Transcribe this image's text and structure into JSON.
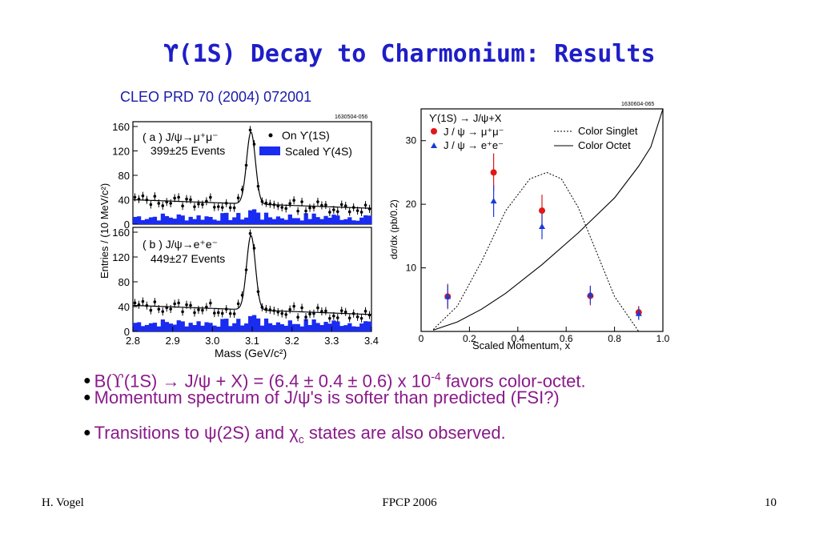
{
  "slide": {
    "title": "ϒ(1S) Decay to Charmonium: Results",
    "reference": "CLEO  PRD 70 (2004) 072001"
  },
  "chart_data": [
    {
      "type": "histogram",
      "panel_id": "1630504-056",
      "xlabel": "Mass (GeV/c²)",
      "ylabel": "Entries / (10 MeV/c²)",
      "xlim": [
        2.8,
        3.4
      ],
      "xticks": [
        "2.8",
        "2.9",
        "3.0",
        "3.1",
        "3.2",
        "3.3",
        "3.4"
      ],
      "panels": [
        {
          "label": "( a ) J/ψ→μ⁺μ⁻",
          "events": "399±25 Events",
          "ylim": [
            0,
            160
          ],
          "yticks": [
            "0",
            "40",
            "80",
            "120",
            "160"
          ],
          "legend": [
            "On ϒ(1S)",
            "Scaled ϒ(4S)"
          ],
          "peak": {
            "mass": 3.097,
            "height": 158,
            "background": 40
          },
          "scaled_bg_level": 12
        },
        {
          "label": "( b ) J/ψ→e⁺e⁻",
          "events": "449±27 Events",
          "ylim": [
            0,
            160
          ],
          "yticks": [
            "0",
            "40",
            "80",
            "120",
            "160"
          ],
          "peak": {
            "mass": 3.097,
            "height": 162,
            "background": 42
          },
          "scaled_bg_level": 14
        }
      ]
    },
    {
      "type": "scatter",
      "panel_id": "1630604-065",
      "xlabel": "Scaled Momentum, x",
      "ylabel": "dσ/dx (pb/0.2)",
      "xlim": [
        0,
        1.0
      ],
      "ylim": [
        0,
        35
      ],
      "xticks": [
        "0",
        "0.2",
        "0.4",
        "0.6",
        "0.8",
        "1.0"
      ],
      "yticks": [
        "10",
        "20",
        "30"
      ],
      "legend_title": "ϒ(1S) → J/ψ+X",
      "series": [
        {
          "name": "J / ψ → μ⁺μ⁻",
          "color": "#e01818",
          "marker": "circle",
          "x": [
            0.11,
            0.3,
            0.5,
            0.7,
            0.9
          ],
          "y": [
            5.5,
            25.0,
            19.0,
            5.6,
            3.0
          ],
          "err": [
            2.0,
            3.0,
            2.5,
            1.5,
            1.0
          ]
        },
        {
          "name": "J / ψ → e⁺e⁻",
          "color": "#1a3ad8",
          "marker": "triangle",
          "x": [
            0.11,
            0.3,
            0.5,
            0.7,
            0.9
          ],
          "y": [
            5.5,
            20.5,
            16.5,
            5.8,
            2.8
          ],
          "err": [
            1.8,
            2.5,
            2.0,
            1.4,
            1.0
          ]
        },
        {
          "name": "Color Singlet",
          "style": "dotted",
          "x": [
            0.05,
            0.15,
            0.25,
            0.35,
            0.45,
            0.52,
            0.58,
            0.65,
            0.72,
            0.8,
            0.9
          ],
          "y": [
            0.3,
            4,
            11,
            19,
            24,
            25,
            24,
            19.5,
            13,
            5.5,
            0
          ]
        },
        {
          "name": "Color Octet",
          "style": "solid",
          "x": [
            0.05,
            0.15,
            0.25,
            0.35,
            0.5,
            0.65,
            0.8,
            0.9,
            0.95,
            1.0
          ],
          "y": [
            0.2,
            1.5,
            3.5,
            6,
            10.5,
            15.5,
            21,
            26,
            29,
            35
          ]
        }
      ]
    }
  ],
  "bullets": {
    "b1_pre": "B(",
    "b1_up": "ϒ",
    "b1_mid": "(1S) → J/ψ + X) = (6.4 ± 0.4 ± 0.6) x 10",
    "b1_exp": "-4",
    "b1_post": "  favors color-octet.",
    "b2": "Momentum spectrum of J/ψ's is softer than predicted (FSI?)",
    "b3_pre": "Transitions to  ψ(2S)  and  χ",
    "b3_sub": "c",
    "b3_post": "  states are also observed."
  },
  "footer": {
    "left": "H. Vogel",
    "center": "FPCP 2006",
    "right": "10"
  }
}
